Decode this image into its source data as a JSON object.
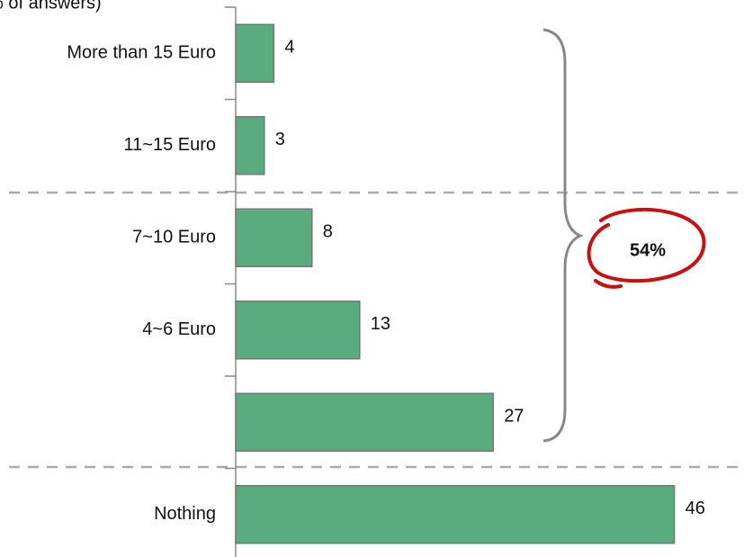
{
  "chart_data": {
    "type": "bar",
    "orientation": "horizontal",
    "title": "% of answers)",
    "categories": [
      "More than 15 Euro",
      "11~15 Euro",
      "7~10 Euro",
      "4~6 Euro",
      null,
      "Nothing"
    ],
    "values": [
      4,
      3,
      8,
      13,
      27,
      46
    ],
    "color": "#5aab7e",
    "annotation": "54%"
  }
}
